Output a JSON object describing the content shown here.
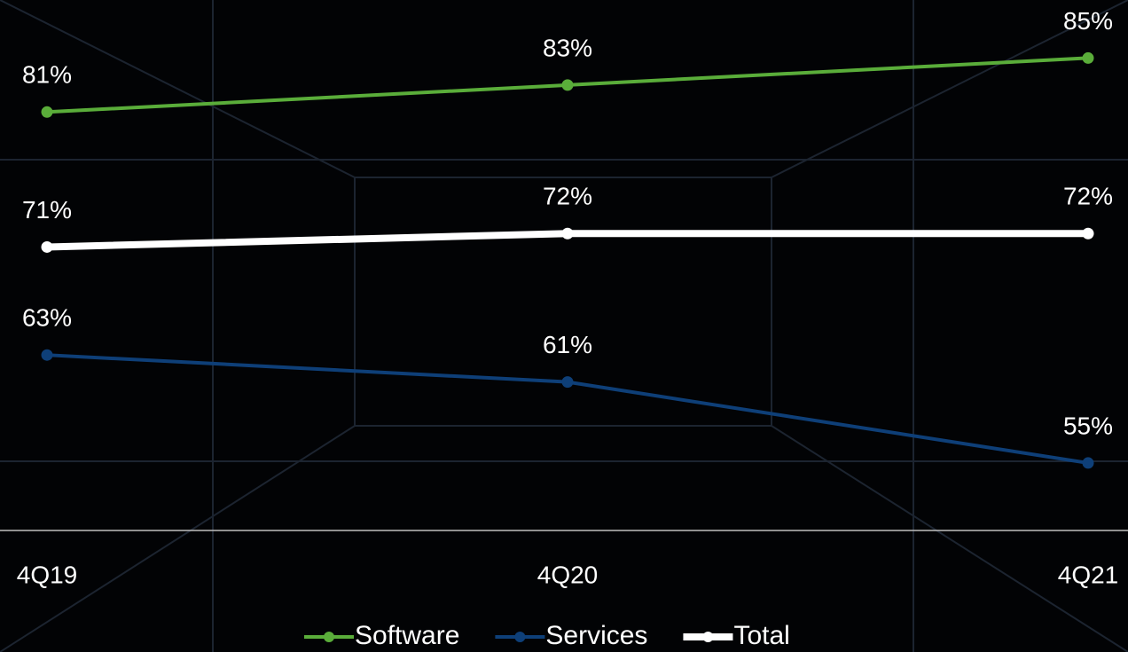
{
  "chart_data": {
    "type": "line",
    "categories": [
      "4Q19",
      "4Q20",
      "4Q21"
    ],
    "series": [
      {
        "name": "Software",
        "color": "#5aad3a",
        "values": [
          81,
          83,
          85
        ],
        "value_labels": [
          "81%",
          "83%",
          "85%"
        ]
      },
      {
        "name": "Services",
        "color": "#0e3f78",
        "values": [
          63,
          61,
          55
        ],
        "value_labels": [
          "63%",
          "61%",
          "55%"
        ]
      },
      {
        "name": "Total",
        "color": "#ffffff",
        "values": [
          71,
          72,
          72
        ],
        "value_labels": [
          "71%",
          "72%",
          "72%"
        ]
      }
    ],
    "ylim": [
      50,
      89.3
    ],
    "legend": "bottom"
  }
}
